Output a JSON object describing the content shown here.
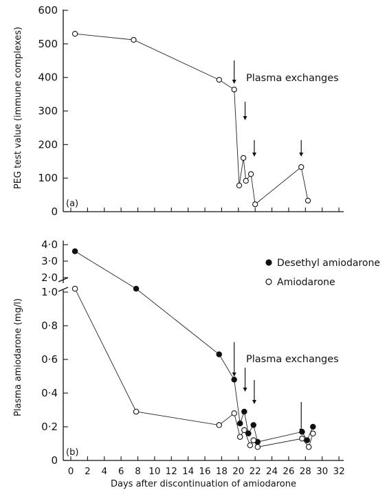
{
  "chart_data": [
    {
      "type": "line",
      "panel_label": "(a)",
      "ylabel": "PEG test value (immune complexes)",
      "ylim": [
        0,
        600
      ],
      "yticks": [
        "0",
        "100",
        "200",
        "300",
        "400",
        "500",
        "600"
      ],
      "xlim": [
        -1,
        32
      ],
      "annotation": "Plasma exchanges",
      "arrows_at_day": [
        19.5,
        20.8,
        21.9,
        27.5
      ],
      "series": [
        {
          "marker": "open-circle",
          "x": [
            0.5,
            7.5,
            17.7,
            19.5,
            20.1,
            20.6,
            20.9,
            21.5,
            22.0,
            27.5,
            28.3
          ],
          "y": [
            530,
            512,
            393,
            364,
            78,
            160,
            92,
            112,
            22,
            133,
            33
          ]
        }
      ]
    },
    {
      "type": "line",
      "panel_label": "(b)",
      "xlabel": "Days after discontinuation of amiodarone",
      "ylabel": "Plasma amiodarone (mg/l)",
      "ylim": [
        0,
        4
      ],
      "yticks": [
        "0",
        "0·2",
        "0·4",
        "0·6",
        "0·8",
        "1·0",
        "2·0",
        "3·0",
        "4·0"
      ],
      "broken_axis": "between 1·0 and 2·0",
      "xticks": [
        0,
        2,
        4,
        6,
        8,
        10,
        12,
        14,
        16,
        18,
        20,
        22,
        24,
        26,
        28,
        30,
        32
      ],
      "xlim": [
        -1,
        32
      ],
      "annotation": "Plasma exchanges",
      "arrows_at_day": [
        19.5,
        20.8,
        21.9,
        27.5
      ],
      "legend_position": "right",
      "series": [
        {
          "name": "Desethyl amiodarone",
          "marker": "filled-circle",
          "x": [
            0.5,
            7.8,
            17.7,
            19.5,
            20.2,
            20.7,
            21.2,
            21.8,
            22.3,
            27.6,
            28.2,
            28.9
          ],
          "y": [
            3.6,
            1.02,
            0.63,
            0.48,
            0.22,
            0.29,
            0.16,
            0.21,
            0.11,
            0.17,
            0.12,
            0.2
          ]
        },
        {
          "name": "Amiodarone",
          "marker": "open-circle",
          "x": [
            0.5,
            7.8,
            17.7,
            19.5,
            20.2,
            20.7,
            21.4,
            21.8,
            22.3,
            27.6,
            28.4,
            28.9
          ],
          "y": [
            1.02,
            0.29,
            0.21,
            0.28,
            0.14,
            0.18,
            0.09,
            0.12,
            0.08,
            0.13,
            0.08,
            0.16
          ]
        }
      ]
    }
  ]
}
